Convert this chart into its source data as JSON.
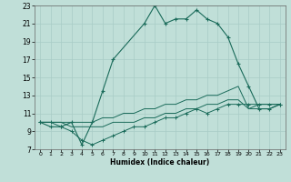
{
  "xlabel": "Humidex (Indice chaleur)",
  "bg_color": "#c0dfd8",
  "grid_color": "#a8ccc6",
  "line_color": "#1a6b5a",
  "xlim": [
    -0.5,
    23.5
  ],
  "ylim": [
    7,
    23
  ],
  "xticks": [
    0,
    1,
    2,
    3,
    4,
    5,
    6,
    7,
    8,
    9,
    10,
    11,
    12,
    13,
    14,
    15,
    16,
    17,
    18,
    19,
    20,
    21,
    22,
    23
  ],
  "yticks": [
    7,
    9,
    11,
    13,
    15,
    17,
    19,
    21,
    23
  ],
  "line1_x": [
    0,
    1,
    2,
    3,
    4,
    5,
    6,
    7,
    10,
    11,
    12,
    13,
    14,
    15,
    16,
    17,
    18,
    19,
    20,
    21,
    22,
    23
  ],
  "line1_y": [
    10,
    9.5,
    9.5,
    10,
    7.5,
    10,
    13.5,
    17,
    21,
    23,
    21,
    21.5,
    21.5,
    22.5,
    21.5,
    21,
    19.5,
    16.5,
    14,
    11.5,
    11.5,
    12
  ],
  "line2_x": [
    0,
    1,
    2,
    3,
    4,
    5,
    6,
    7,
    8,
    9,
    10,
    11,
    12,
    13,
    14,
    15,
    16,
    17,
    18,
    19,
    20,
    21,
    22,
    23
  ],
  "line2_y": [
    10,
    10,
    10,
    10,
    10,
    10,
    10.5,
    10.5,
    11,
    11,
    11.5,
    11.5,
    12,
    12,
    12.5,
    12.5,
    13,
    13,
    13.5,
    14,
    11.5,
    11.5,
    11.5,
    12
  ],
  "line3_x": [
    0,
    1,
    2,
    3,
    4,
    5,
    6,
    7,
    8,
    9,
    10,
    11,
    12,
    13,
    14,
    15,
    16,
    17,
    18,
    19,
    20,
    21,
    22,
    23
  ],
  "line3_y": [
    10,
    10,
    10,
    9.5,
    9.5,
    9.5,
    9.5,
    10,
    10,
    10,
    10.5,
    10.5,
    11,
    11,
    11.5,
    11.5,
    12,
    12,
    12.5,
    12.5,
    11.5,
    12,
    12,
    12
  ],
  "line4_x": [
    0,
    1,
    2,
    3,
    4,
    5,
    6,
    7,
    8,
    9,
    10,
    11,
    12,
    13,
    14,
    15,
    16,
    17,
    18,
    19,
    20,
    21,
    22,
    23
  ],
  "line4_y": [
    10,
    10,
    9.5,
    9,
    8,
    7.5,
    8,
    8.5,
    9,
    9.5,
    9.5,
    10,
    10.5,
    10.5,
    11,
    11.5,
    11,
    11.5,
    12,
    12,
    12,
    12,
    12,
    12
  ]
}
